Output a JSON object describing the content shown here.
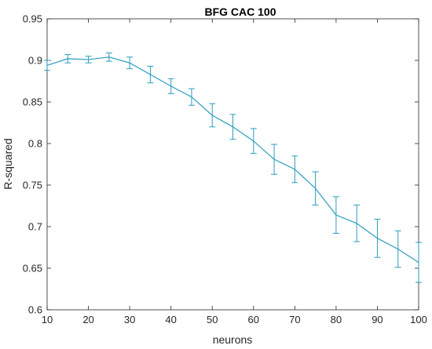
{
  "chart_data": {
    "type": "line",
    "title": "BFG CAC 100",
    "xlabel": "neurons",
    "ylabel": "R-squared",
    "xlim": [
      10,
      100
    ],
    "ylim": [
      0.6,
      0.95
    ],
    "xticks": [
      10,
      20,
      30,
      40,
      50,
      60,
      70,
      80,
      90,
      100
    ],
    "yticks": [
      0.6,
      0.65,
      0.7,
      0.75,
      0.8,
      0.85,
      0.9,
      0.95
    ],
    "xtick_labels": [
      "10",
      "20",
      "30",
      "40",
      "50",
      "60",
      "70",
      "80",
      "90",
      "100"
    ],
    "ytick_labels": [
      "0.6",
      "0.65",
      "0.7",
      "0.75",
      "0.8",
      "0.85",
      "0.9",
      "0.95"
    ],
    "grid": false,
    "legend": "none",
    "color": "#2a9dbd",
    "series": [
      {
        "x": [
          10,
          15,
          20,
          25,
          30,
          35,
          40,
          45,
          50,
          55,
          60,
          65,
          70,
          75,
          80,
          85,
          90,
          95,
          100
        ],
        "y": [
          0.894,
          0.902,
          0.901,
          0.904,
          0.897,
          0.883,
          0.869,
          0.856,
          0.834,
          0.82,
          0.803,
          0.781,
          0.769,
          0.746,
          0.714,
          0.704,
          0.686,
          0.673,
          0.657
        ],
        "err": [
          0.006,
          0.005,
          0.004,
          0.005,
          0.007,
          0.01,
          0.009,
          0.01,
          0.014,
          0.015,
          0.015,
          0.018,
          0.016,
          0.02,
          0.022,
          0.022,
          0.023,
          0.022,
          0.024
        ]
      }
    ]
  }
}
